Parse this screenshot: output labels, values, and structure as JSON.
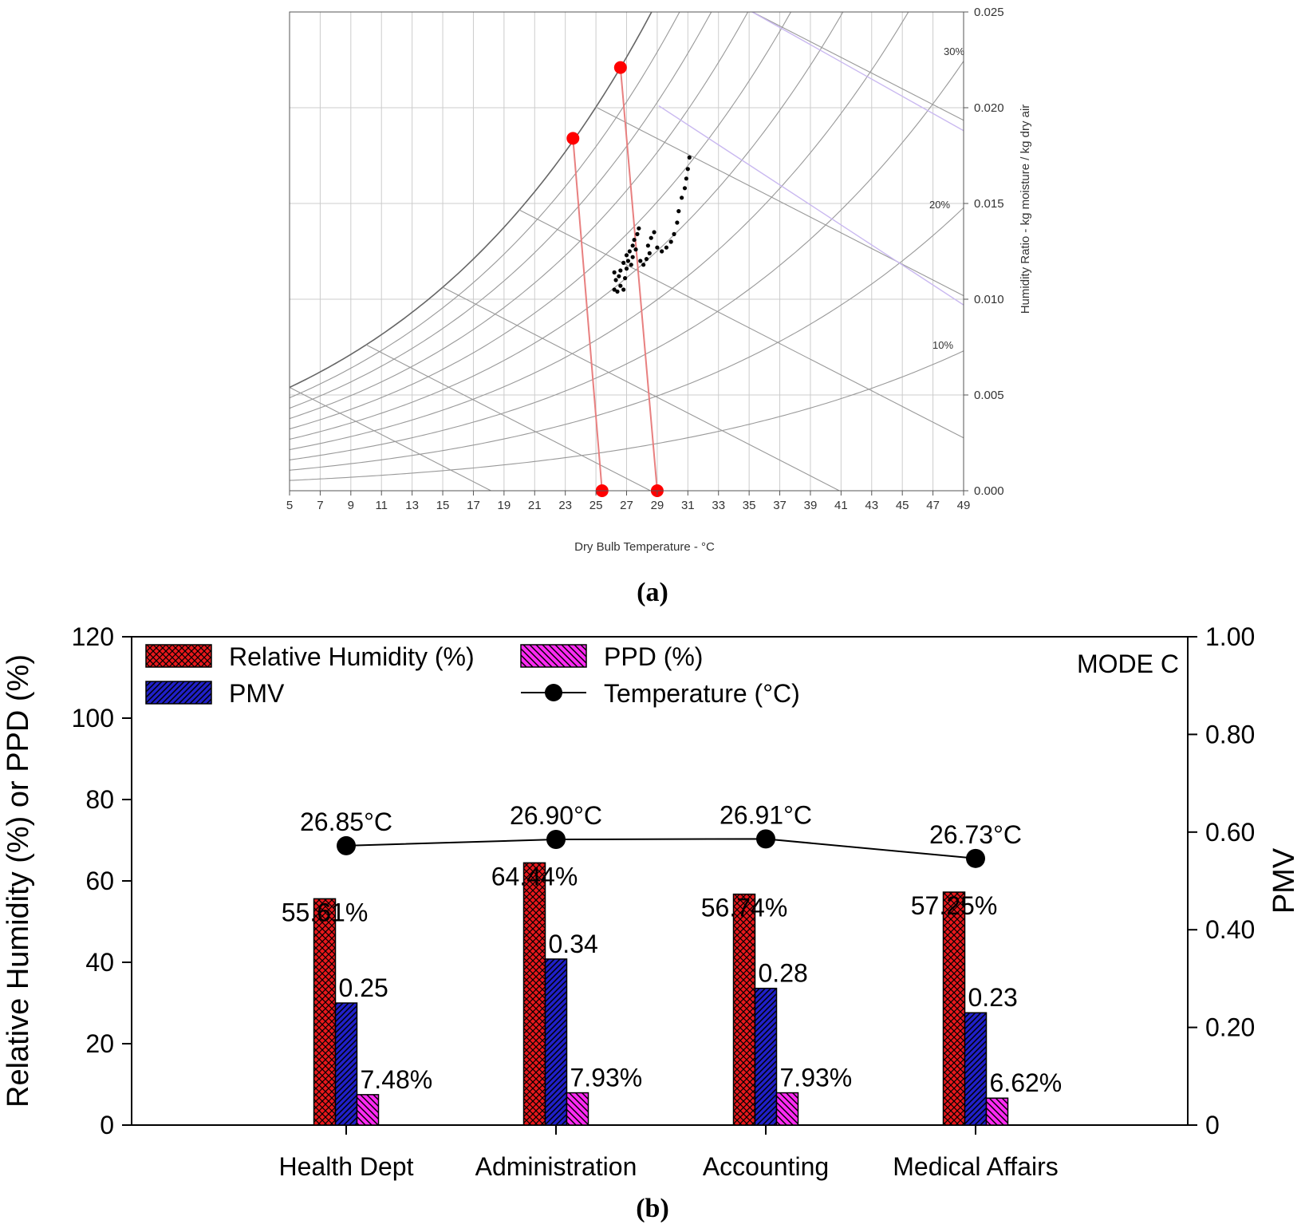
{
  "panel_a": {
    "label": "(a)",
    "x_axis_label": "Dry Bulb Temperature - °C",
    "y_axis_label": "Humidity Ratio - kg moisture / kg dry air",
    "x_ticks": [
      "5",
      "7",
      "9",
      "11",
      "13",
      "15",
      "17",
      "19",
      "21",
      "23",
      "25",
      "27",
      "29",
      "31",
      "33",
      "35",
      "37",
      "39",
      "41",
      "43",
      "45",
      "47",
      "49"
    ],
    "y_ticks": [
      "0.000",
      "0.005",
      "0.010",
      "0.015",
      "0.020",
      "0.025"
    ],
    "rh_labels": [
      "30%",
      "20%",
      "10%"
    ],
    "colors": {
      "comfort_zone": "#e88080",
      "comfort_points": "#ff0000",
      "data_points": "#000000",
      "grid": "#cccccc",
      "curves": "#999999",
      "enthalpy": "#c9b8f0"
    },
    "chart_data": {
      "type": "scatter",
      "title": "",
      "xlabel": "Dry Bulb Temperature - °C",
      "ylabel": "Humidity Ratio - kg moisture / kg dry air",
      "xlim": [
        5,
        49
      ],
      "ylim": [
        0,
        0.025
      ],
      "comfort_zone_corners": [
        {
          "x": 23.5,
          "y": 0.0184
        },
        {
          "x": 26.6,
          "y": 0.0221
        },
        {
          "x": 25.4,
          "y": 0.0
        },
        {
          "x": 29.0,
          "y": 0.0
        }
      ],
      "measured_points": [
        {
          "x": 26.2,
          "y": 0.0105
        },
        {
          "x": 26.4,
          "y": 0.0104
        },
        {
          "x": 26.6,
          "y": 0.0107
        },
        {
          "x": 26.8,
          "y": 0.0105
        },
        {
          "x": 26.3,
          "y": 0.011
        },
        {
          "x": 26.5,
          "y": 0.0112
        },
        {
          "x": 26.9,
          "y": 0.0111
        },
        {
          "x": 26.2,
          "y": 0.0114
        },
        {
          "x": 26.6,
          "y": 0.0115
        },
        {
          "x": 27.0,
          "y": 0.0116
        },
        {
          "x": 26.8,
          "y": 0.0119
        },
        {
          "x": 27.1,
          "y": 0.012
        },
        {
          "x": 27.3,
          "y": 0.0118
        },
        {
          "x": 27.0,
          "y": 0.0123
        },
        {
          "x": 27.2,
          "y": 0.0125
        },
        {
          "x": 27.4,
          "y": 0.0122
        },
        {
          "x": 27.4,
          "y": 0.0128
        },
        {
          "x": 27.6,
          "y": 0.0126
        },
        {
          "x": 27.5,
          "y": 0.0131
        },
        {
          "x": 27.7,
          "y": 0.0134
        },
        {
          "x": 27.8,
          "y": 0.0137
        },
        {
          "x": 27.9,
          "y": 0.012
        },
        {
          "x": 28.1,
          "y": 0.0118
        },
        {
          "x": 28.3,
          "y": 0.0121
        },
        {
          "x": 28.5,
          "y": 0.0124
        },
        {
          "x": 28.4,
          "y": 0.0128
        },
        {
          "x": 28.6,
          "y": 0.0132
        },
        {
          "x": 28.8,
          "y": 0.0135
        },
        {
          "x": 29.0,
          "y": 0.0127
        },
        {
          "x": 29.3,
          "y": 0.0125
        },
        {
          "x": 29.6,
          "y": 0.0127
        },
        {
          "x": 29.9,
          "y": 0.013
        },
        {
          "x": 30.1,
          "y": 0.0134
        },
        {
          "x": 30.3,
          "y": 0.014
        },
        {
          "x": 30.4,
          "y": 0.0146
        },
        {
          "x": 30.6,
          "y": 0.0153
        },
        {
          "x": 30.8,
          "y": 0.0158
        },
        {
          "x": 30.9,
          "y": 0.0163
        },
        {
          "x": 31.0,
          "y": 0.0168
        },
        {
          "x": 31.1,
          "y": 0.0174
        }
      ]
    }
  },
  "panel_b": {
    "label": "(b)",
    "mode_label": "MODE C",
    "y_left_label": "Relative Humidity (%) or PPD (%)",
    "y_right_label": "PMV",
    "y_left_ticks": [
      "0",
      "20",
      "40",
      "60",
      "80",
      "100",
      "120"
    ],
    "y_right_ticks": [
      "0",
      "0.20",
      "0.40",
      "0.60",
      "0.80",
      "1.00"
    ],
    "legend": {
      "rh": "Relative Humidity (%)",
      "pmv": "PMV",
      "ppd": "PPD (%)",
      "temp": "Temperature (°C)"
    },
    "colors": {
      "rh": "#e8181c",
      "pmv": "#2020c8",
      "ppd": "#ff2af2",
      "temp": "#000000"
    },
    "chart_data": {
      "type": "bar",
      "title": "",
      "xlabel": "",
      "ylabel": "Relative Humidity (%) or PPD (%)",
      "y2label": "PMV",
      "ylim": [
        0,
        120
      ],
      "y2lim": [
        0,
        1.0
      ],
      "categories": [
        "Health Dept",
        "Administration",
        "Accounting",
        "Medical Affairs"
      ],
      "series": [
        {
          "name": "Relative Humidity (%)",
          "axis": "left",
          "values": [
            55.61,
            64.44,
            56.74,
            57.25
          ],
          "labels": [
            "55.61%",
            "64.44%",
            "56.74%",
            "57.25%"
          ]
        },
        {
          "name": "PMV",
          "axis": "right",
          "values": [
            0.25,
            0.34,
            0.28,
            0.23
          ],
          "labels": [
            "0.25",
            "0.34",
            "0.28",
            "0.23"
          ]
        },
        {
          "name": "PPD (%)",
          "axis": "left",
          "values": [
            7.48,
            7.93,
            7.93,
            6.62
          ],
          "labels": [
            "7.48%",
            "7.93%",
            "7.93%",
            "6.62%"
          ]
        },
        {
          "name": "Temperature (°C)",
          "axis": "right",
          "type": "line",
          "values": [
            26.85,
            26.9,
            26.91,
            26.73
          ],
          "plotted_pmv_equiv": [
            0.572,
            0.585,
            0.586,
            0.546
          ],
          "labels": [
            "26.85°C",
            "26.90°C",
            "26.91°C",
            "26.73°C"
          ]
        }
      ],
      "annotations": [
        "MODE C"
      ]
    }
  }
}
